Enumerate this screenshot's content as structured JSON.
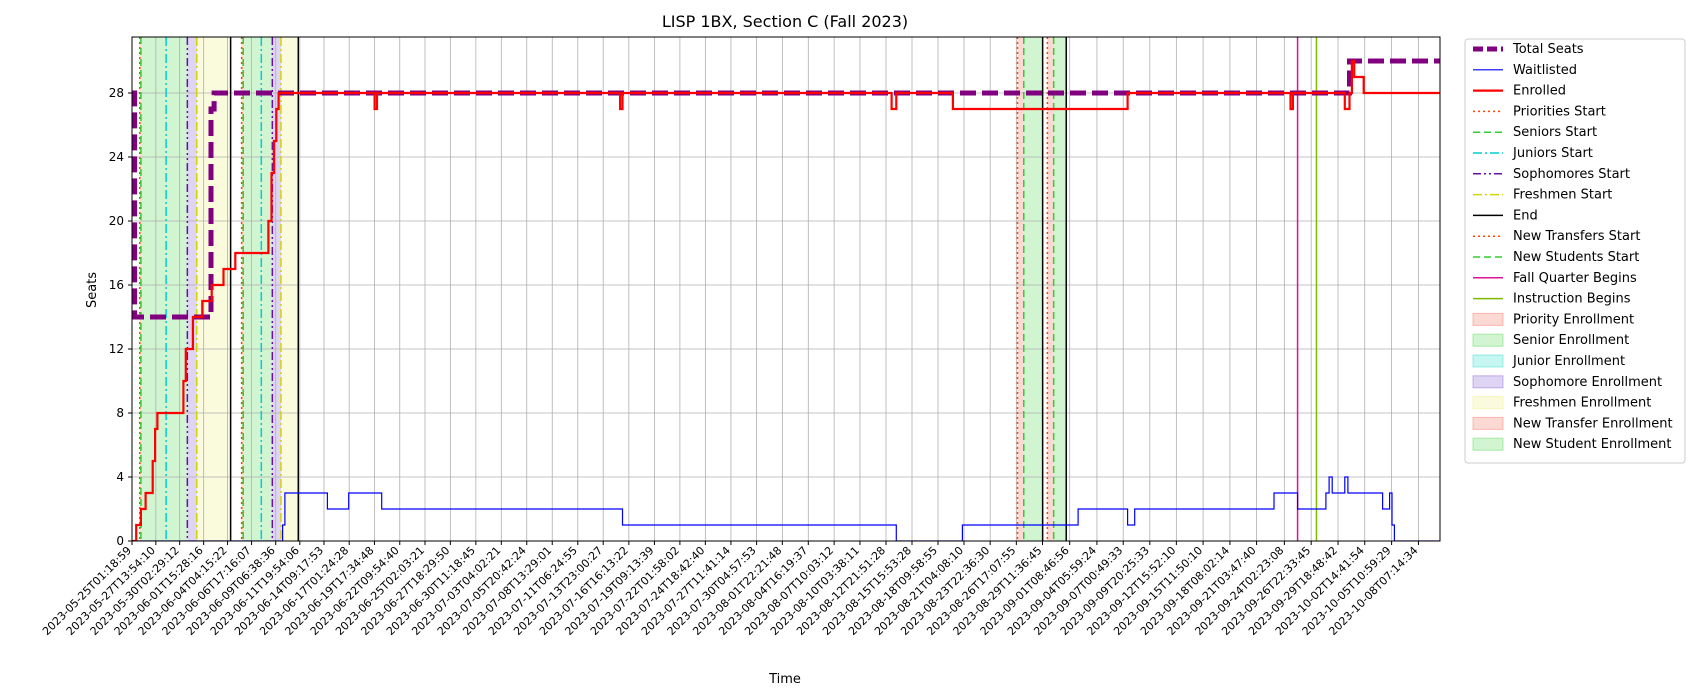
{
  "chart_data": {
    "type": "line",
    "title": "LISP 1BX, Section C (Fall 2023)",
    "xlabel": "Time",
    "ylabel": "Seats",
    "ylim": [
      0,
      31.5
    ],
    "yticks": [
      0,
      4,
      8,
      12,
      16,
      20,
      24,
      28
    ],
    "xlim": [
      "2023-05-25T01:18:59",
      "2023-10-10T14:00:00"
    ],
    "xticks": [
      "2023-05-25T01:18:59",
      "2023-05-27T13:54:10",
      "2023-05-30T02:29:12",
      "2023-06-01T15:28:16",
      "2023-06-04T04:15:22",
      "2023-06-06T17:16:07",
      "2023-06-09T06:38:36",
      "2023-06-11T19:54:06",
      "2023-06-14T09:17:53",
      "2023-06-17T01:24:28",
      "2023-06-19T17:34:48",
      "2023-06-22T09:54:40",
      "2023-06-25T02:03:21",
      "2023-06-27T18:29:50",
      "2023-06-30T11:18:45",
      "2023-07-03T04:02:21",
      "2023-07-05T20:42:24",
      "2023-07-08T13:29:01",
      "2023-07-11T06:24:55",
      "2023-07-13T23:00:27",
      "2023-07-16T16:13:22",
      "2023-07-19T09:13:39",
      "2023-07-22T01:58:02",
      "2023-07-24T18:42:40",
      "2023-07-27T11:41:14",
      "2023-07-30T04:57:53",
      "2023-08-01T22:21:48",
      "2023-08-04T16:19:37",
      "2023-08-07T10:03:12",
      "2023-08-10T03:38:11",
      "2023-08-12T21:51:28",
      "2023-08-15T15:53:28",
      "2023-08-18T09:58:55",
      "2023-08-21T04:08:10",
      "2023-08-23T22:36:30",
      "2023-08-26T17:07:55",
      "2023-08-29T11:36:45",
      "2023-09-01T08:46:56",
      "2023-09-04T05:59:24",
      "2023-09-07T00:49:33",
      "2023-09-09T20:25:33",
      "2023-09-12T15:52:10",
      "2023-09-15T11:50:10",
      "2023-09-18T08:02:14",
      "2023-09-21T03:47:40",
      "2023-09-24T02:23:08",
      "2023-09-26T22:33:45",
      "2023-09-29T18:48:42",
      "2023-10-02T14:41:54",
      "2023-10-05T10:59:29",
      "2023-10-08T07:14:34"
    ],
    "grid": true,
    "legend_position": "outside-right",
    "series": [
      {
        "name": "Total Seats",
        "style": "dashed",
        "color": "#800080",
        "points": [
          [
            "2023-05-25T01:18:59",
            28
          ],
          [
            "2023-05-25T08:00:00",
            28
          ],
          [
            "2023-05-25T08:00:00",
            14
          ],
          [
            "2023-06-02T10:00:00",
            14
          ],
          [
            "2023-06-02T10:00:00",
            27
          ],
          [
            "2023-06-02T18:00:00",
            27
          ],
          [
            "2023-06-02T18:00:00",
            28
          ],
          [
            "2023-10-01T00:00:00",
            28
          ],
          [
            "2023-10-01T00:00:00",
            30
          ],
          [
            "2023-10-10T14:00:00",
            30
          ]
        ]
      },
      {
        "name": "Waitlisted",
        "style": "solid",
        "color": "#0000ff",
        "points": [
          [
            "2023-05-25T01:18:59",
            0
          ],
          [
            "2023-06-10T00:00:00",
            0
          ],
          [
            "2023-06-10T00:00:00",
            1
          ],
          [
            "2023-06-10T06:00:00",
            1
          ],
          [
            "2023-06-10T06:00:00",
            3
          ],
          [
            "2023-06-14T18:00:00",
            3
          ],
          [
            "2023-06-14T18:00:00",
            2
          ],
          [
            "2023-06-17T00:00:00",
            2
          ],
          [
            "2023-06-17T00:00:00",
            3
          ],
          [
            "2023-06-20T12:00:00",
            3
          ],
          [
            "2023-06-20T12:00:00",
            2
          ],
          [
            "2023-07-16T00:00:00",
            2
          ],
          [
            "2023-07-16T00:00:00",
            1
          ],
          [
            "2023-08-14T00:00:00",
            1
          ],
          [
            "2023-08-14T00:00:00",
            0
          ],
          [
            "2023-08-21T00:00:00",
            0
          ],
          [
            "2023-08-21T00:00:00",
            1
          ],
          [
            "2023-09-02T06:00:00",
            1
          ],
          [
            "2023-09-02T06:00:00",
            2
          ],
          [
            "2023-09-07T12:00:00",
            2
          ],
          [
            "2023-09-07T12:00:00",
            1
          ],
          [
            "2023-09-08T06:00:00",
            1
          ],
          [
            "2023-09-08T06:00:00",
            2
          ],
          [
            "2023-09-23T00:00:00",
            2
          ],
          [
            "2023-09-23T00:00:00",
            3
          ],
          [
            "2023-09-25T12:00:00",
            3
          ],
          [
            "2023-09-25T12:00:00",
            2
          ],
          [
            "2023-09-28T12:00:00",
            2
          ],
          [
            "2023-09-28T12:00:00",
            3
          ],
          [
            "2023-09-28T20:00:00",
            3
          ],
          [
            "2023-09-28T20:00:00",
            4
          ],
          [
            "2023-09-29T04:00:00",
            4
          ],
          [
            "2023-09-29T04:00:00",
            3
          ],
          [
            "2023-09-30T12:00:00",
            3
          ],
          [
            "2023-09-30T12:00:00",
            4
          ],
          [
            "2023-09-30T20:00:00",
            4
          ],
          [
            "2023-09-30T20:00:00",
            3
          ],
          [
            "2023-10-04T12:00:00",
            3
          ],
          [
            "2023-10-04T12:00:00",
            2
          ],
          [
            "2023-10-05T06:00:00",
            2
          ],
          [
            "2023-10-05T06:00:00",
            3
          ],
          [
            "2023-10-05T12:00:00",
            3
          ],
          [
            "2023-10-05T12:00:00",
            1
          ],
          [
            "2023-10-05T18:00:00",
            1
          ],
          [
            "2023-10-05T18:00:00",
            0
          ],
          [
            "2023-10-10T14:00:00",
            0
          ]
        ]
      },
      {
        "name": "Enrolled",
        "style": "solid",
        "color": "#ff0000",
        "points": [
          [
            "2023-05-25T01:18:59",
            0
          ],
          [
            "2023-05-25T12:00:00",
            0
          ],
          [
            "2023-05-25T12:00:00",
            1
          ],
          [
            "2023-05-26T00:00:00",
            1
          ],
          [
            "2023-05-26T00:00:00",
            2
          ],
          [
            "2023-05-26T12:00:00",
            2
          ],
          [
            "2023-05-26T12:00:00",
            3
          ],
          [
            "2023-05-27T06:00:00",
            3
          ],
          [
            "2023-05-27T06:00:00",
            5
          ],
          [
            "2023-05-27T12:00:00",
            5
          ],
          [
            "2023-05-27T12:00:00",
            7
          ],
          [
            "2023-05-27T18:00:00",
            7
          ],
          [
            "2023-05-27T18:00:00",
            8
          ],
          [
            "2023-05-30T12:00:00",
            8
          ],
          [
            "2023-05-30T12:00:00",
            10
          ],
          [
            "2023-05-30T18:00:00",
            10
          ],
          [
            "2023-05-30T18:00:00",
            12
          ],
          [
            "2023-05-31T12:00:00",
            12
          ],
          [
            "2023-05-31T12:00:00",
            14
          ],
          [
            "2023-06-01T12:00:00",
            14
          ],
          [
            "2023-06-01T12:00:00",
            15
          ],
          [
            "2023-06-02T12:00:00",
            15
          ],
          [
            "2023-06-02T12:00:00",
            16
          ],
          [
            "2023-06-03T18:00:00",
            16
          ],
          [
            "2023-06-03T18:00:00",
            17
          ],
          [
            "2023-06-05T00:00:00",
            17
          ],
          [
            "2023-06-05T00:00:00",
            18
          ],
          [
            "2023-06-08T12:00:00",
            18
          ],
          [
            "2023-06-08T12:00:00",
            20
          ],
          [
            "2023-06-08T20:00:00",
            20
          ],
          [
            "2023-06-08T20:00:00",
            23
          ],
          [
            "2023-06-09T02:00:00",
            23
          ],
          [
            "2023-06-09T02:00:00",
            25
          ],
          [
            "2023-06-09T08:00:00",
            25
          ],
          [
            "2023-06-09T08:00:00",
            27
          ],
          [
            "2023-06-09T14:00:00",
            27
          ],
          [
            "2023-06-09T14:00:00",
            28
          ],
          [
            "2023-06-19T18:00:00",
            28
          ],
          [
            "2023-06-19T18:00:00",
            27
          ],
          [
            "2023-06-20T00:00:00",
            27
          ],
          [
            "2023-06-20T00:00:00",
            28
          ],
          [
            "2023-07-15T18:00:00",
            28
          ],
          [
            "2023-07-15T18:00:00",
            27
          ],
          [
            "2023-07-16T00:00:00",
            27
          ],
          [
            "2023-07-16T00:00:00",
            28
          ],
          [
            "2023-08-13T12:00:00",
            28
          ],
          [
            "2023-08-13T12:00:00",
            27
          ],
          [
            "2023-08-14T00:00:00",
            27
          ],
          [
            "2023-08-14T00:00:00",
            28
          ],
          [
            "2023-08-20T00:00:00",
            28
          ],
          [
            "2023-08-20T00:00:00",
            27
          ],
          [
            "2023-09-07T12:00:00",
            27
          ],
          [
            "2023-09-07T12:00:00",
            28
          ],
          [
            "2023-09-24T18:00:00",
            28
          ],
          [
            "2023-09-24T18:00:00",
            27
          ],
          [
            "2023-09-25T00:00:00",
            27
          ],
          [
            "2023-09-25T00:00:00",
            28
          ],
          [
            "2023-09-30T12:00:00",
            28
          ],
          [
            "2023-09-30T12:00:00",
            27
          ],
          [
            "2023-10-01T00:00:00",
            27
          ],
          [
            "2023-10-01T00:00:00",
            28
          ],
          [
            "2023-10-01T06:00:00",
            28
          ],
          [
            "2023-10-01T06:00:00",
            30
          ],
          [
            "2023-10-01T12:00:00",
            30
          ],
          [
            "2023-10-01T12:00:00",
            29
          ],
          [
            "2023-10-02T12:00:00",
            29
          ],
          [
            "2023-10-02T12:00:00",
            28
          ],
          [
            "2023-10-10T14:00:00",
            28
          ]
        ]
      }
    ],
    "vlines": [
      {
        "name": "Priorities Start",
        "style": "dotted",
        "color": "#ff4500",
        "dates": [
          "2023-05-25T21:00:00",
          "2023-06-05T16:00:00",
          "2023-08-26T20:00:00",
          "2023-08-30T00:00:00"
        ]
      },
      {
        "name": "Seniors Start",
        "style": "dashed",
        "color": "#32cd32",
        "dates": [
          "2023-05-26T00:00:00",
          "2023-06-05T20:00:00",
          "2023-08-27T12:00:00",
          "2023-08-30T16:00:00"
        ]
      },
      {
        "name": "Juniors Start",
        "style": "dashdot",
        "color": "#00ced1",
        "dates": [
          "2023-05-28T16:00:00",
          "2023-06-07T18:00:00"
        ]
      },
      {
        "name": "Sophomores Start",
        "style": "dashdotdot",
        "color": "#6a0dad",
        "dates": [
          "2023-05-30T22:00:00",
          "2023-06-08T22:00:00"
        ]
      },
      {
        "name": "Freshmen Start",
        "style": "dashdot",
        "color": "#d4d400",
        "dates": [
          "2023-05-31T22:00:00",
          "2023-06-09T20:00:00"
        ]
      },
      {
        "name": "End",
        "style": "solid",
        "color": "#000000",
        "dates": [
          "2023-06-04T12:00:00",
          "2023-06-11T16:00:00",
          "2023-08-29T12:00:00",
          "2023-09-01T00:00:00"
        ]
      },
      {
        "name": "New Transfers Start",
        "style": "dotted",
        "color": "#ff4500",
        "dates": []
      },
      {
        "name": "New Students Start",
        "style": "dashed",
        "color": "#32cd32",
        "dates": []
      },
      {
        "name": "Fall Quarter Begins",
        "style": "solid",
        "color": "#e0119d",
        "dates": [
          "2023-09-25T12:00:00"
        ]
      },
      {
        "name": "Instruction Begins",
        "style": "solid",
        "color": "#7fba00",
        "dates": [
          "2023-09-27T12:00:00"
        ]
      }
    ],
    "spans": [
      {
        "name": "Priority Enrollment",
        "color": "#fa8072",
        "ranges": [
          [
            "2023-05-25T21:00:00",
            "2023-05-26T00:00:00"
          ],
          [
            "2023-06-05T16:00:00",
            "2023-06-05T20:00:00"
          ]
        ]
      },
      {
        "name": "Senior Enrollment",
        "color": "#66d966",
        "ranges": [
          [
            "2023-05-26T00:00:00",
            "2023-05-30T22:00:00"
          ],
          [
            "2023-06-05T20:00:00",
            "2023-06-08T22:00:00"
          ]
        ]
      },
      {
        "name": "Junior Enrollment",
        "color": "#40e0d0",
        "ranges": []
      },
      {
        "name": "Sophomore Enrollment",
        "color": "#9370db",
        "ranges": [
          [
            "2023-05-30T22:00:00",
            "2023-05-31T22:00:00"
          ],
          [
            "2023-06-08T22:00:00",
            "2023-06-09T20:00:00"
          ]
        ]
      },
      {
        "name": "Freshmen Enrollment",
        "color": "#f0f08c",
        "ranges": [
          [
            "2023-05-31T22:00:00",
            "2023-06-04T12:00:00"
          ],
          [
            "2023-06-09T20:00:00",
            "2023-06-11T16:00:00"
          ]
        ]
      },
      {
        "name": "New Transfer Enrollment",
        "color": "#fa8072",
        "ranges": [
          [
            "2023-08-26T20:00:00",
            "2023-08-27T12:00:00"
          ],
          [
            "2023-08-30T00:00:00",
            "2023-08-30T16:00:00"
          ]
        ]
      },
      {
        "name": "New Student Enrollment",
        "color": "#66d966",
        "ranges": [
          [
            "2023-08-27T12:00:00",
            "2023-08-29T12:00:00"
          ],
          [
            "2023-08-30T16:00:00",
            "2023-09-01T00:00:00"
          ]
        ]
      }
    ]
  }
}
